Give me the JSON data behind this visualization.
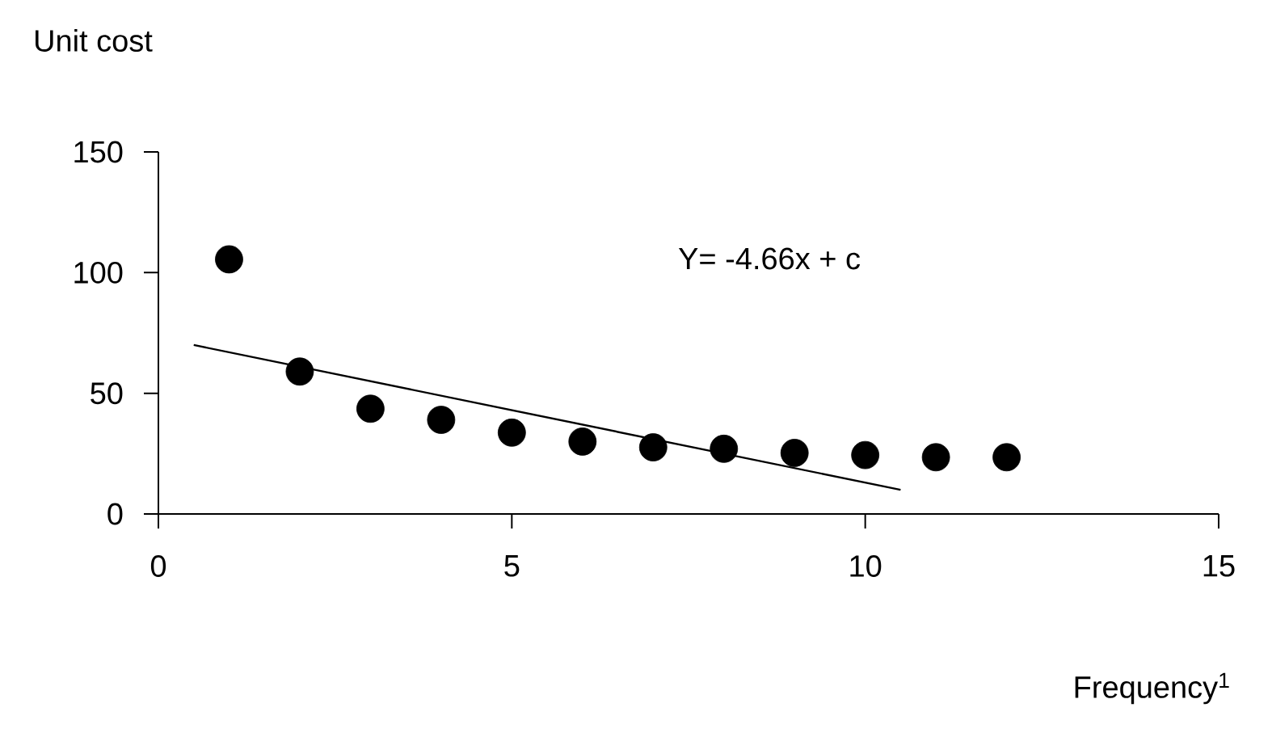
{
  "chart_data": {
    "type": "scatter",
    "ylabel": "Unit cost",
    "xlabel": "Frequency$^{1}$",
    "annotations": [
      "Y= -4.66x + c"
    ],
    "xlim": [
      0,
      15
    ],
    "xticks": [
      0,
      5,
      10,
      15
    ],
    "ylim": [
      0,
      150
    ],
    "yticks": [
      0,
      50,
      100,
      150
    ],
    "grid": false,
    "series": [
      {
        "color": "#000000",
        "marker": "circle",
        "x": [
          1,
          2,
          3,
          4,
          5,
          6,
          7,
          8,
          9,
          10,
          11,
          12
        ],
        "values": [
          105.5,
          59,
          43.6,
          39,
          33.7,
          30,
          27.6,
          27,
          25.3,
          24.4,
          23.5,
          23.5
        ]
      },
      {
        "type": "line",
        "color": "#000000",
        "line_style": "solid",
        "marker": "none",
        "x": [
          0.5,
          10.5
        ],
        "values": [
          70,
          10
        ]
      }
    ]
  }
}
